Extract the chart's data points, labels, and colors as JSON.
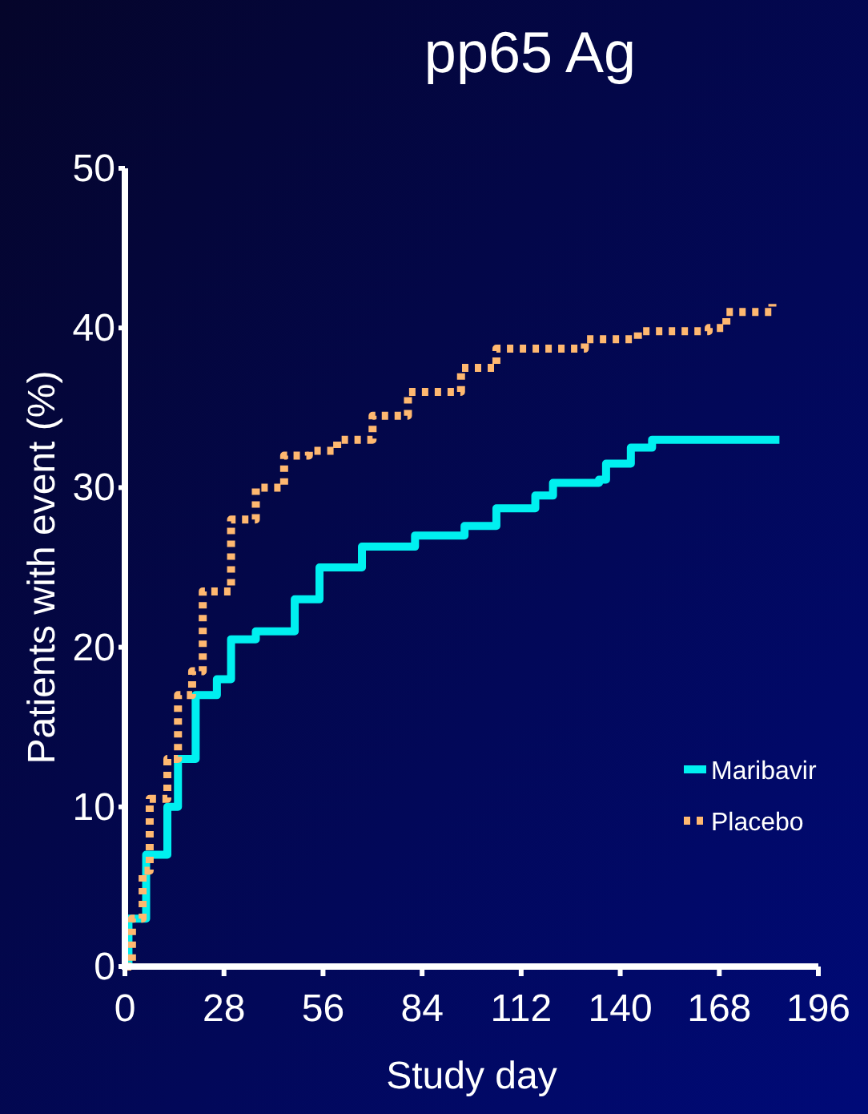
{
  "chart_data": {
    "type": "step",
    "title": "pp65 Ag",
    "xlabel": "Study day",
    "ylabel": "Patients with event (%)",
    "xlim": [
      0,
      196
    ],
    "xticks": [
      0,
      28,
      56,
      84,
      112,
      140,
      168,
      196
    ],
    "ylim": [
      0,
      50
    ],
    "yticks": [
      0,
      10,
      20,
      30,
      40,
      50
    ],
    "grid": false,
    "legend": "right",
    "series": [
      {
        "name": "Maribavir",
        "color": "#00f0f0",
        "line_style": "solid",
        "x": [
          0,
          1,
          4,
          6,
          8,
          12,
          15,
          20,
          26,
          30,
          37,
          48,
          55,
          67,
          82,
          96,
          105,
          116,
          121,
          134,
          136,
          143,
          149,
          185
        ],
        "values": [
          0,
          3,
          3,
          7,
          7,
          10,
          13,
          17,
          18,
          20.5,
          21,
          23,
          25,
          26.3,
          27,
          27.6,
          28.7,
          29.5,
          30.3,
          30.5,
          31.5,
          32.5,
          33,
          33
        ]
      },
      {
        "name": "Placebo",
        "color": "#ffb870",
        "line_style": "dotted",
        "x": [
          0,
          2,
          5,
          7,
          12,
          15,
          19,
          22,
          30,
          37,
          45,
          52,
          60,
          70,
          80,
          95,
          105,
          130,
          145,
          165,
          170,
          183
        ],
        "values": [
          0,
          3,
          6,
          10.5,
          13,
          17,
          18.5,
          23.5,
          28,
          30,
          32,
          32.3,
          33,
          34.5,
          36,
          37.5,
          38.7,
          39.3,
          39.8,
          40,
          41,
          41.5
        ]
      }
    ]
  }
}
